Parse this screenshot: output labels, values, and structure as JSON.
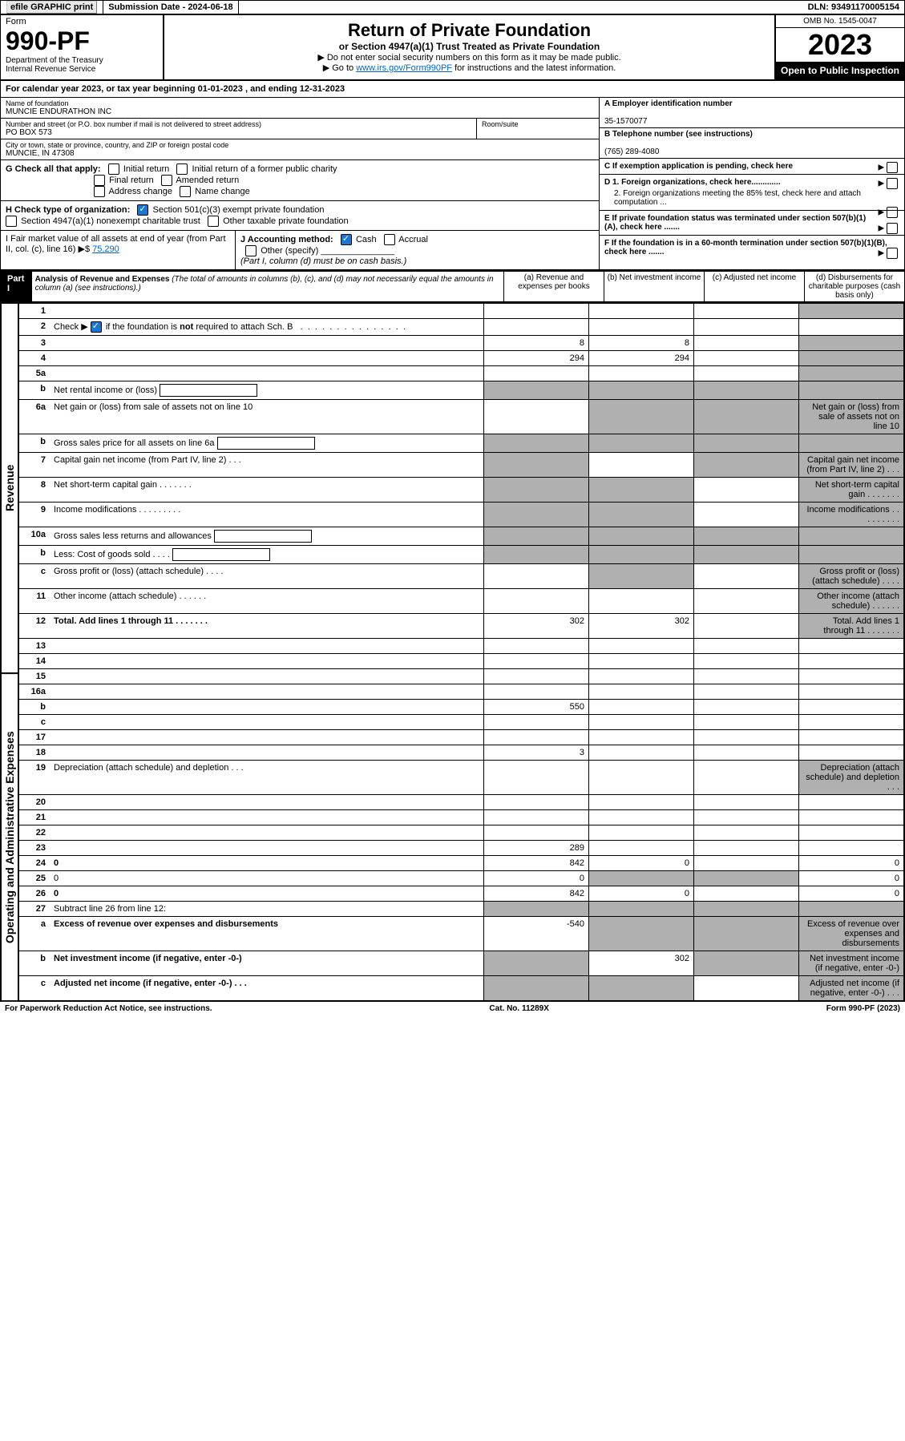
{
  "top_bar": {
    "efile": "efile GRAPHIC print",
    "submission": "Submission Date - 2024-06-18",
    "dln": "DLN: 93491170005154"
  },
  "header": {
    "form_word": "Form",
    "form_no": "990-PF",
    "dept": "Department of the Treasury",
    "irs": "Internal Revenue Service",
    "title": "Return of Private Foundation",
    "subtitle": "or Section 4947(a)(1) Trust Treated as Private Foundation",
    "instr1": "▶ Do not enter social security numbers on this form as it may be made public.",
    "instr2_pre": "▶ Go to ",
    "instr2_link": "www.irs.gov/Form990PF",
    "instr2_post": " for instructions and the latest information.",
    "omb": "OMB No. 1545-0047",
    "year": "2023",
    "open": "Open to Public Inspection"
  },
  "cal_year": "For calendar year 2023, or tax year beginning 01-01-2023                              , and ending 12-31-2023",
  "entity": {
    "name_label": "Name of foundation",
    "name": "MUNCIE ENDURATHON INC",
    "addr_label": "Number and street (or P.O. box number if mail is not delivered to street address)",
    "addr": "PO BOX 573",
    "room_label": "Room/suite",
    "city_label": "City or town, state or province, country, and ZIP or foreign postal code",
    "city": "MUNCIE, IN  47308",
    "ein_label": "A Employer identification number",
    "ein": "35-1570077",
    "phone_label": "B Telephone number (see instructions)",
    "phone": "(765) 289-4080",
    "c_label": "C If exemption application is pending, check here",
    "d1": "D 1. Foreign organizations, check here.............",
    "d2": "2. Foreign organizations meeting the 85% test, check here and attach computation ...",
    "e_label": "E  If private foundation status was terminated under section 507(b)(1)(A), check here .......",
    "f_label": "F  If the foundation is in a 60-month termination under section 507(b)(1)(B), check here .......",
    "g_label": "G Check all that apply:",
    "g_opts": [
      "Initial return",
      "Initial return of a former public charity",
      "Final return",
      "Amended return",
      "Address change",
      "Name change"
    ],
    "h_label": "H Check type of organization:",
    "h_opt1": "Section 501(c)(3) exempt private foundation",
    "h_opt2": "Section 4947(a)(1) nonexempt charitable trust",
    "h_opt3": "Other taxable private foundation",
    "i_label": "I Fair market value of all assets at end of year (from Part II, col. (c), line 16)",
    "i_val": "75,290",
    "j_label": "J Accounting method:",
    "j_cash": "Cash",
    "j_accrual": "Accrual",
    "j_other": "Other (specify)",
    "j_note": "(Part I, column (d) must be on cash basis.)"
  },
  "part1": {
    "label": "Part I",
    "title": "Analysis of Revenue and Expenses",
    "note": " (The total of amounts in columns (b), (c), and (d) may not necessarily equal the amounts in column (a) (see instructions).)",
    "col_a": "(a)   Revenue and expenses per books",
    "col_b": "(b)   Net investment income",
    "col_c": "(c)   Adjusted net income",
    "col_d": "(d)   Disbursements for charitable purposes (cash basis only)"
  },
  "side": {
    "revenue": "Revenue",
    "expenses": "Operating and Administrative Expenses"
  },
  "rows": [
    {
      "n": "1",
      "d": "",
      "a": "",
      "b": "",
      "c": "",
      "shade_d": true
    },
    {
      "n": "2",
      "d": "Check ▶ [✓] if the foundation is not required to attach Sch. B     .  .  .  .  .  .  .  .  .  .  .  .  .  .  .  .",
      "check": true,
      "nocols": true
    },
    {
      "n": "3",
      "d": "",
      "a": "8",
      "b": "8",
      "c": "",
      "shade_d": true
    },
    {
      "n": "4",
      "d": "",
      "a": "294",
      "b": "294",
      "c": "",
      "shade_d": true
    },
    {
      "n": "5a",
      "d": "",
      "a": "",
      "b": "",
      "c": "",
      "shade_d": true
    },
    {
      "n": "b",
      "d": "Net rental income or (loss)",
      "subbox": true,
      "nocols": true,
      "shade_all": true
    },
    {
      "n": "6a",
      "d": "Net gain or (loss) from sale of assets not on line 10",
      "a": "",
      "shade_bcd": true
    },
    {
      "n": "b",
      "d": "Gross sales price for all assets on line 6a",
      "subbox": true,
      "nocols": true,
      "shade_all": true
    },
    {
      "n": "7",
      "d": "Capital gain net income (from Part IV, line 2)   .   .   .",
      "shade_a": true,
      "b": "",
      "shade_cd": true
    },
    {
      "n": "8",
      "d": "Net short-term capital gain   .   .   .   .   .   .   .",
      "shade_ab": true,
      "c": "",
      "shade_d": true
    },
    {
      "n": "9",
      "d": "Income modifications   .   .   .   .   .   .   .   .   .",
      "shade_ab": true,
      "c": "",
      "shade_d": true
    },
    {
      "n": "10a",
      "d": "Gross sales less returns and allowances",
      "subbox": true,
      "nocols": true,
      "shade_all": true
    },
    {
      "n": "b",
      "d": "Less: Cost of goods sold    .   .   .   .",
      "subbox": true,
      "nocols": true,
      "shade_all": true
    },
    {
      "n": "c",
      "d": "Gross profit or (loss) (attach schedule)    .   .   .   .",
      "a": "",
      "shade_b": true,
      "c": "",
      "shade_d": true
    },
    {
      "n": "11",
      "d": "Other income (attach schedule)    .   .   .   .   .   .",
      "a": "",
      "b": "",
      "c": "",
      "shade_d": true
    },
    {
      "n": "12",
      "d": "Total. Add lines 1 through 11   .   .   .   .   .   .   .",
      "bold": true,
      "a": "302",
      "b": "302",
      "c": "",
      "shade_d": true
    },
    {
      "n": "13",
      "d": "",
      "a": "",
      "b": "",
      "c": ""
    },
    {
      "n": "14",
      "d": "",
      "a": "",
      "b": "",
      "c": ""
    },
    {
      "n": "15",
      "d": "",
      "a": "",
      "b": "",
      "c": ""
    },
    {
      "n": "16a",
      "d": "",
      "a": "",
      "b": "",
      "c": ""
    },
    {
      "n": "b",
      "d": "",
      "a": "550",
      "b": "",
      "c": ""
    },
    {
      "n": "c",
      "d": "",
      "a": "",
      "b": "",
      "c": ""
    },
    {
      "n": "17",
      "d": "",
      "a": "",
      "b": "",
      "c": ""
    },
    {
      "n": "18",
      "d": "",
      "a": "3",
      "b": "",
      "c": ""
    },
    {
      "n": "19",
      "d": "Depreciation (attach schedule) and depletion   .   .   .",
      "a": "",
      "b": "",
      "c": "",
      "shade_d": true
    },
    {
      "n": "20",
      "d": "",
      "a": "",
      "b": "",
      "c": ""
    },
    {
      "n": "21",
      "d": "",
      "a": "",
      "b": "",
      "c": ""
    },
    {
      "n": "22",
      "d": "",
      "a": "",
      "b": "",
      "c": ""
    },
    {
      "n": "23",
      "d": "",
      "a": "289",
      "b": "",
      "c": ""
    },
    {
      "n": "24",
      "d": "0",
      "bold": true,
      "a": "842",
      "b": "0",
      "c": ""
    },
    {
      "n": "25",
      "d": "0",
      "a": "0",
      "shade_bc": true
    },
    {
      "n": "26",
      "d": "0",
      "bold": true,
      "a": "842",
      "b": "0",
      "c": ""
    },
    {
      "n": "27",
      "d": "Subtract line 26 from line 12:",
      "nocols": true,
      "shade_all": true
    },
    {
      "n": "a",
      "d": "Excess of revenue over expenses and disbursements",
      "bold": true,
      "a": "-540",
      "shade_bcd": true
    },
    {
      "n": "b",
      "d": "Net investment income (if negative, enter -0-)",
      "bold": true,
      "shade_a": true,
      "b": "302",
      "shade_cd": true
    },
    {
      "n": "c",
      "d": "Adjusted net income (if negative, enter -0-)   .   .   .",
      "bold": true,
      "shade_ab": true,
      "c": "",
      "shade_d": true
    }
  ],
  "footer": {
    "left": "For Paperwork Reduction Act Notice, see instructions.",
    "mid": "Cat. No. 11289X",
    "right": "Form 990-PF (2023)"
  }
}
